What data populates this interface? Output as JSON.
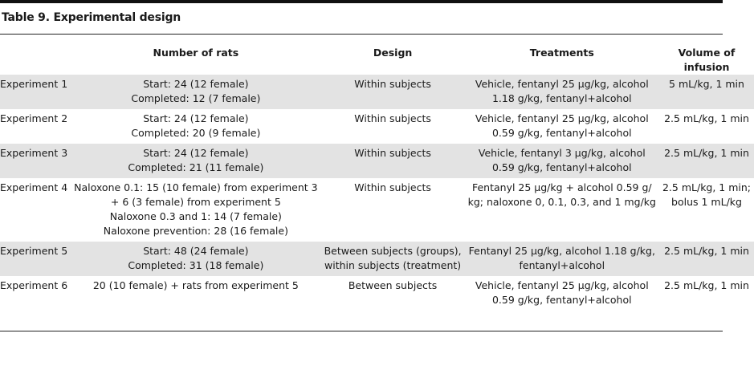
{
  "caption": "Table 9. Experimental design",
  "headers": [
    "",
    "Number of rats",
    "Design",
    "Treatments",
    "Volume of infusion"
  ],
  "rows": [
    {
      "experiment": "Experiment 1",
      "rats": [
        "Start: 24 (12 female)",
        "Completed: 12 (7 female)"
      ],
      "design": [
        "Within subjects"
      ],
      "treatments": [
        "Vehicle, fentanyl 25 μg/kg, alcohol",
        "1.18 g/kg, fentanyl+alcohol"
      ],
      "volume": [
        "5 mL/kg, 1 min"
      ]
    },
    {
      "experiment": "Experiment 2",
      "rats": [
        "Start: 24 (12 female)",
        "Completed: 20 (9 female)"
      ],
      "design": [
        "Within subjects"
      ],
      "treatments": [
        "Vehicle, fentanyl 25 μg/kg, alcohol",
        "0.59 g/kg, fentanyl+alcohol"
      ],
      "volume": [
        "2.5 mL/kg, 1 min"
      ]
    },
    {
      "experiment": "Experiment 3",
      "rats": [
        "Start: 24 (12 female)",
        "Completed: 21 (11 female)"
      ],
      "design": [
        "Within subjects"
      ],
      "treatments": [
        "Vehicle, fentanyl 3 μg/kg, alcohol",
        "0.59 g/kg, fentanyl+alcohol"
      ],
      "volume": [
        "2.5 mL/kg, 1 min"
      ]
    },
    {
      "experiment": "Experiment 4",
      "rats": [
        "Naloxone 0.1: 15 (10 female) from experiment 3",
        "+ 6 (3 female) from experiment 5",
        "Naloxone 0.3 and 1: 14 (7 female)",
        "Naloxone prevention: 28 (16 female)"
      ],
      "design": [
        "Within subjects"
      ],
      "treatments": [
        "Fentanyl 25 μg/kg + alcohol 0.59 g/",
        "kg; naloxone 0, 0.1, 0.3, and 1 mg/kg"
      ],
      "volume": [
        "2.5 mL/kg, 1 min;",
        "bolus 1 mL/kg"
      ]
    },
    {
      "experiment": "Experiment 5",
      "rats": [
        "Start: 48 (24 female)",
        "Completed: 31 (18 female)"
      ],
      "design": [
        "Between subjects (groups),",
        "within subjects (treatment)"
      ],
      "treatments": [
        "Fentanyl 25 μg/kg, alcohol 1.18 g/kg,",
        "fentanyl+alcohol"
      ],
      "volume": [
        "2.5 mL/kg, 1 min"
      ]
    },
    {
      "experiment": "Experiment 6",
      "rats": [
        "20 (10 female) + rats from experiment 5"
      ],
      "design": [
        "Between subjects"
      ],
      "treatments": [
        "Vehicle, fentanyl 25 μg/kg, alcohol",
        "0.59 g/kg, fentanyl+alcohol"
      ],
      "volume": [
        "2.5 mL/kg, 1 min"
      ]
    }
  ]
}
